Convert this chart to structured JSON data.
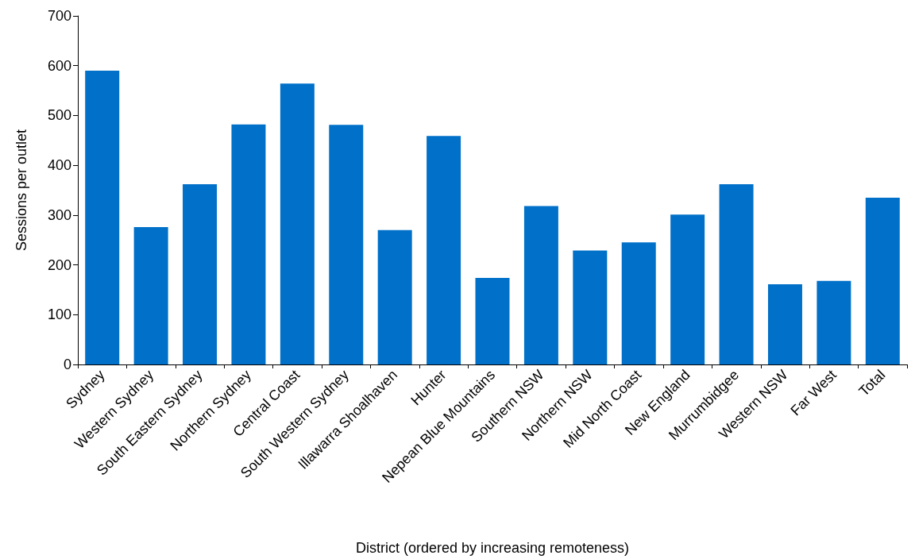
{
  "chart_data": {
    "type": "bar",
    "xlabel": "District (ordered by increasing remoteness)",
    "ylabel": "Sessions per outlet",
    "categories": [
      "Sydney",
      "Western Sydney",
      "South Eastern Sydney",
      "Northern Sydney",
      "Central Coast",
      "South Western Sydney",
      "Illawarra Shoalhaven",
      "Hunter",
      "Nepean Blue Mountains",
      "Southern NSW",
      "Northern NSW",
      "Mid North Coast",
      "New England",
      "Murrumbidgee",
      "Western NSW",
      "Far West",
      "Total"
    ],
    "values": [
      590,
      276,
      362,
      482,
      564,
      481,
      270,
      459,
      174,
      318,
      229,
      245,
      301,
      362,
      161,
      168,
      335
    ],
    "color": "#0070c8",
    "ylim": [
      0,
      700
    ],
    "yticks": [
      0,
      100,
      200,
      300,
      400,
      500,
      600,
      700
    ],
    "grid": false
  }
}
